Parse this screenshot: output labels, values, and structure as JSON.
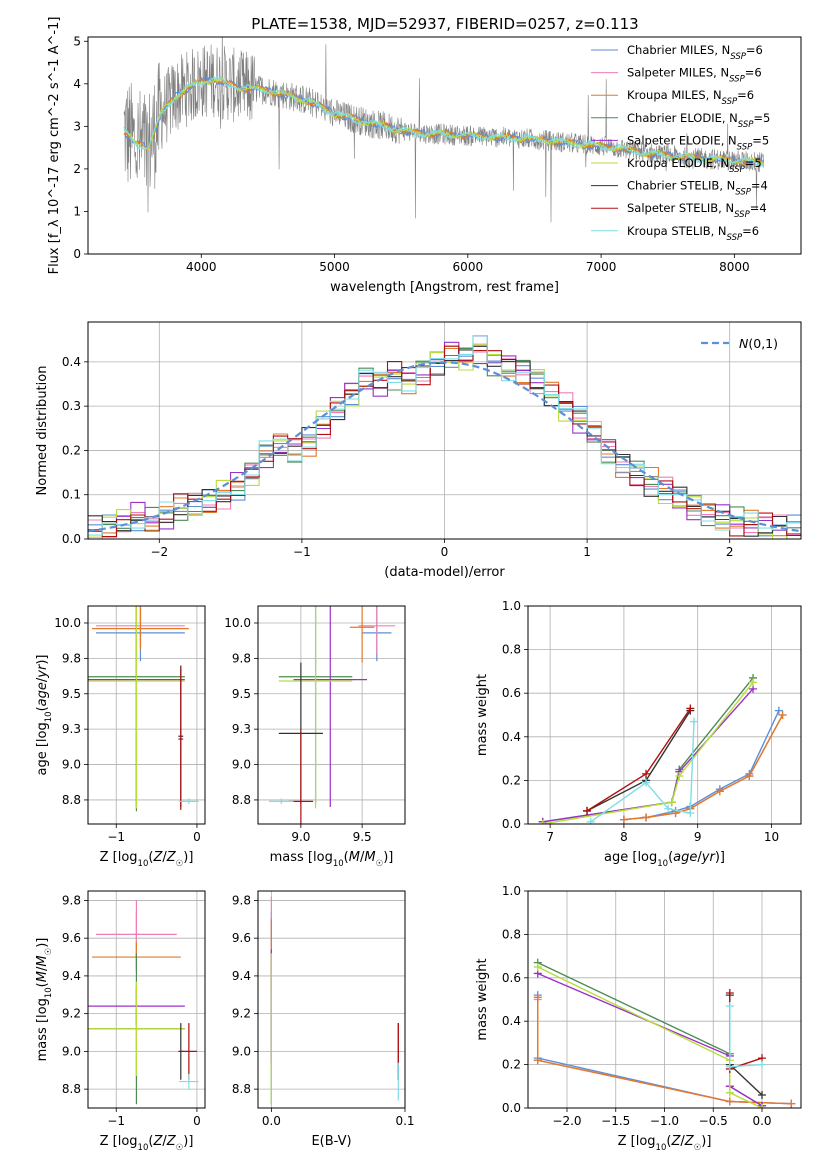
{
  "title": "PLATE=1538, MJD=52937, FIBERID=0257, z=0.113",
  "colors": {
    "Chabrier MILES": "#5b8fd8",
    "Salpeter MILES": "#f07eb5",
    "Kroupa MILES": "#e07b2a",
    "Chabrier ELODIE": "#4d8b55",
    "Salpeter ELODIE": "#9b30c8",
    "Kroupa ELODIE": "#b8dc3c",
    "Chabrier STELIB": "#333333",
    "Salpeter STELIB": "#b01010",
    "Kroupa STELIB": "#7fdde6",
    "data": "#808080",
    "normal": "#5b8fd8",
    "grid": "#b0b0b0"
  },
  "chart_data": [
    {
      "id": "spectrum",
      "type": "line",
      "xlabel": "wavelength [Angstrom, rest frame]",
      "ylabel": "Flux [f_λ 10^-17 erg cm^-2 s^-1 A^-1]",
      "xlim": [
        3150,
        8500
      ],
      "ylim": [
        0,
        5.1
      ],
      "xticks": [
        4000,
        5000,
        6000,
        7000,
        8000
      ],
      "yticks": [
        0,
        1,
        2,
        3,
        4,
        5
      ],
      "grid": false,
      "legend_position": "right",
      "legend": [
        {
          "name": "Chabrier MILES",
          "nssp": "6"
        },
        {
          "name": "Salpeter MILES",
          "nssp": "6"
        },
        {
          "name": "Kroupa MILES",
          "nssp": "6"
        },
        {
          "name": "Chabrier ELODIE",
          "nssp": "5"
        },
        {
          "name": "Salpeter ELODIE",
          "nssp": "5"
        },
        {
          "name": "Kroupa ELODIE",
          "nssp": "5"
        },
        {
          "name": "Chabrier STELIB",
          "nssp": "4"
        },
        {
          "name": "Salpeter STELIB",
          "nssp": "4"
        },
        {
          "name": "Kroupa STELIB",
          "nssp": "6"
        }
      ],
      "data_range": [
        3420,
        8220
      ],
      "continuum": {
        "x": [
          3420,
          3500,
          3600,
          3700,
          3800,
          3900,
          4000,
          4100,
          4300,
          4500,
          4800,
          5000,
          5300,
          5600,
          5900,
          6200,
          6500,
          6800,
          7100,
          7400,
          7700,
          8000,
          8220
        ],
        "y": [
          2.9,
          2.6,
          2.5,
          3.3,
          3.7,
          3.9,
          4.05,
          4.1,
          3.9,
          3.85,
          3.6,
          3.3,
          3.05,
          2.85,
          2.8,
          2.75,
          2.7,
          2.6,
          2.5,
          2.35,
          2.25,
          2.2,
          2.15
        ]
      }
    },
    {
      "id": "residuals",
      "type": "line",
      "xlabel": "(data-model)/error",
      "ylabel": "Normed distribution",
      "xlim": [
        -2.5,
        2.5
      ],
      "ylim": [
        0,
        0.49
      ],
      "xticks": [
        -2,
        -1,
        0,
        1,
        2
      ],
      "yticks": [
        0.0,
        0.1,
        0.2,
        0.3,
        0.4
      ],
      "grid": true,
      "legend_label": "N(0,1)",
      "legend_position": "top-right",
      "bin_width": 0.1,
      "histogram_base": [
        0.02,
        0.025,
        0.04,
        0.05,
        0.04,
        0.05,
        0.07,
        0.075,
        0.085,
        0.1,
        0.12,
        0.15,
        0.19,
        0.21,
        0.2,
        0.22,
        0.26,
        0.3,
        0.33,
        0.36,
        0.35,
        0.37,
        0.36,
        0.38,
        0.4,
        0.42,
        0.41,
        0.43,
        0.4,
        0.39,
        0.38,
        0.36,
        0.33,
        0.3,
        0.27,
        0.24,
        0.2,
        0.17,
        0.15,
        0.13,
        0.11,
        0.09,
        0.07,
        0.06,
        0.05,
        0.04,
        0.035,
        0.03,
        0.025,
        0.02
      ]
    },
    {
      "id": "age-vs-Z",
      "type": "scatter",
      "xlabel": "Z [log10(Z/Z☉)]",
      "ylabel": "age  [log10(age/yr)]",
      "xlim": [
        -1.35,
        0.1
      ],
      "ylim": [
        8.58,
        10.12
      ],
      "xticks": [
        -1,
        0
      ],
      "yticks": [
        8.75,
        9.0,
        9.25,
        9.5,
        9.75,
        10.0
      ],
      "grid": true,
      "points": [
        {
          "model": "Chabrier MILES",
          "x": -0.7,
          "y": 9.93,
          "xerr": 0.55,
          "yerr": 0.2
        },
        {
          "model": "Salpeter MILES",
          "x": -0.7,
          "y": 9.98,
          "xerr": 0.55,
          "yerr": 0.15
        },
        {
          "model": "Kroupa MILES",
          "x": -0.7,
          "y": 9.96,
          "xerr": 0.6,
          "yerr": 0.15
        },
        {
          "model": "Chabrier ELODIE",
          "x": -0.75,
          "y": 9.62,
          "xerr": 0.6,
          "yerr": 0.95
        },
        {
          "model": "Salpeter ELODIE",
          "x": -0.75,
          "y": 9.6,
          "xerr": 0.6,
          "yerr": 0.9
        },
        {
          "model": "Kroupa ELODIE",
          "x": -0.75,
          "y": 9.59,
          "xerr": 0.6,
          "yerr": 0.9
        },
        {
          "model": "Chabrier STELIB",
          "x": -0.2,
          "y": 9.2,
          "xerr": 0.03,
          "yerr": 0.5
        },
        {
          "model": "Salpeter STELIB",
          "x": -0.2,
          "y": 9.18,
          "xerr": 0.03,
          "yerr": 0.5
        },
        {
          "model": "Kroupa STELIB",
          "x": -0.1,
          "y": 8.74,
          "xerr": 0.12,
          "yerr": 0.02
        }
      ]
    },
    {
      "id": "age-vs-mass",
      "type": "scatter",
      "xlabel": "mass [log10(M/M☉)]",
      "ylabel": "",
      "xlim": [
        8.65,
        9.85
      ],
      "ylim": [
        8.58,
        10.12
      ],
      "xticks": [
        9.0,
        9.5
      ],
      "yticks": [
        8.75,
        9.0,
        9.25,
        9.5,
        9.75,
        10.0
      ],
      "grid": true,
      "points": [
        {
          "model": "Chabrier MILES",
          "x": 9.62,
          "y": 9.93,
          "xerr": 0.12,
          "yerr": 0.2
        },
        {
          "model": "Salpeter MILES",
          "x": 9.62,
          "y": 9.98,
          "xerr": 0.15,
          "yerr": 0.2
        },
        {
          "model": "Kroupa MILES",
          "x": 9.5,
          "y": 9.97,
          "xerr": 0.1,
          "yerr": 0.25
        },
        {
          "model": "Chabrier ELODIE",
          "x": 9.12,
          "y": 9.62,
          "xerr": 0.3,
          "yerr": 0.9
        },
        {
          "model": "Salpeter ELODIE",
          "x": 9.24,
          "y": 9.6,
          "xerr": 0.3,
          "yerr": 0.9
        },
        {
          "model": "Kroupa ELODIE",
          "x": 9.12,
          "y": 9.59,
          "xerr": 0.3,
          "yerr": 0.9
        },
        {
          "model": "Chabrier STELIB",
          "x": 9.0,
          "y": 9.22,
          "xerr": 0.18,
          "yerr": 0.5
        },
        {
          "model": "Salpeter STELIB",
          "x": 9.0,
          "y": 8.74,
          "xerr": 0.1,
          "yerr": 0.5
        },
        {
          "model": "Kroupa STELIB",
          "x": 8.84,
          "y": 8.74,
          "xerr": 0.1,
          "yerr": 0.02
        }
      ]
    },
    {
      "id": "weight-vs-age",
      "type": "line",
      "xlabel": "age  [log10(age/yr)]",
      "ylabel": "mass weight",
      "xlim": [
        6.7,
        10.4
      ],
      "ylim": [
        0,
        1.0
      ],
      "xticks": [
        7,
        8,
        9,
        10
      ],
      "yticks": [
        0.0,
        0.2,
        0.4,
        0.6,
        0.8,
        1.0
      ],
      "grid": true,
      "series": [
        {
          "model": "Chabrier MILES",
          "x": [
            8.0,
            8.3,
            8.7,
            8.9,
            9.3,
            9.7,
            10.1
          ],
          "y": [
            0.02,
            0.03,
            0.06,
            0.08,
            0.16,
            0.23,
            0.52
          ]
        },
        {
          "model": "Salpeter MILES",
          "x": [
            8.0,
            8.3,
            8.7,
            8.9,
            9.3,
            9.7,
            10.15
          ],
          "y": [
            0.02,
            0.03,
            0.05,
            0.07,
            0.15,
            0.22,
            0.5
          ]
        },
        {
          "model": "Kroupa MILES",
          "x": [
            8.0,
            8.3,
            8.7,
            8.9,
            9.3,
            9.7,
            10.15
          ],
          "y": [
            0.02,
            0.03,
            0.05,
            0.07,
            0.15,
            0.22,
            0.5
          ]
        },
        {
          "model": "Chabrier ELODIE",
          "x": [
            6.9,
            8.65,
            8.75,
            9.75
          ],
          "y": [
            0.01,
            0.1,
            0.25,
            0.67
          ]
        },
        {
          "model": "Salpeter ELODIE",
          "x": [
            6.9,
            8.65,
            8.75,
            9.75
          ],
          "y": [
            0.01,
            0.1,
            0.24,
            0.62
          ]
        },
        {
          "model": "Kroupa ELODIE",
          "x": [
            6.9,
            8.65,
            8.75,
            9.75
          ],
          "y": [
            0.0,
            0.1,
            0.22,
            0.65
          ]
        },
        {
          "model": "Chabrier STELIB",
          "x": [
            7.5,
            8.3,
            8.9
          ],
          "y": [
            0.06,
            0.2,
            0.52
          ]
        },
        {
          "model": "Salpeter STELIB",
          "x": [
            7.5,
            8.3,
            8.9
          ],
          "y": [
            0.06,
            0.23,
            0.53
          ]
        },
        {
          "model": "Kroupa STELIB",
          "x": [
            7.55,
            8.3,
            8.6,
            8.9,
            8.95
          ],
          "y": [
            0.01,
            0.19,
            0.07,
            0.05,
            0.47
          ]
        }
      ]
    },
    {
      "id": "mass-vs-Z",
      "type": "scatter",
      "xlabel": "Z [log10(Z/Z☉)]",
      "ylabel": "mass [log10(M/M☉)]",
      "xlim": [
        -1.35,
        0.1
      ],
      "ylim": [
        8.7,
        9.85
      ],
      "xticks": [
        -1,
        0
      ],
      "yticks": [
        8.8,
        9.0,
        9.2,
        9.4,
        9.6,
        9.8
      ],
      "grid": true,
      "points": [
        {
          "model": "Chabrier MILES",
          "x": -0.75,
          "y": 9.62,
          "xerr": 0.03,
          "yerr": 0.12
        },
        {
          "model": "Salpeter MILES",
          "x": -0.75,
          "y": 9.62,
          "xerr": 0.5,
          "yerr": 0.18
        },
        {
          "model": "Kroupa MILES",
          "x": -0.75,
          "y": 9.5,
          "xerr": 0.55,
          "yerr": 0.08
        },
        {
          "model": "Chabrier ELODIE",
          "x": -0.75,
          "y": 9.12,
          "xerr": 0.6,
          "yerr": 0.4
        },
        {
          "model": "Salpeter ELODIE",
          "x": -0.75,
          "y": 9.24,
          "xerr": 0.6,
          "yerr": 0.1
        },
        {
          "model": "Kroupa ELODIE",
          "x": -0.75,
          "y": 9.12,
          "xerr": 0.6,
          "yerr": 0.25
        },
        {
          "model": "Chabrier STELIB",
          "x": -0.2,
          "y": 9.0,
          "xerr": 0.03,
          "yerr": 0.15
        },
        {
          "model": "Salpeter STELIB",
          "x": -0.1,
          "y": 9.0,
          "xerr": 0.1,
          "yerr": 0.15
        },
        {
          "model": "Kroupa STELIB",
          "x": -0.1,
          "y": 8.84,
          "xerr": 0.12,
          "yerr": 0.04
        }
      ]
    },
    {
      "id": "mass-vs-ebv",
      "type": "scatter",
      "xlabel": "E(B-V)",
      "ylabel": "",
      "xlim": [
        -0.01,
        0.1
      ],
      "ylim": [
        8.7,
        9.85
      ],
      "xticks": [
        0.0,
        0.1
      ],
      "yticks": [
        8.8,
        9.0,
        9.2,
        9.4,
        9.6,
        9.8
      ],
      "grid": true,
      "points": [
        {
          "model": "Chabrier MILES",
          "x": 0.0,
          "y": 9.62,
          "xerr": 0.0,
          "yerr": 0.12
        },
        {
          "model": "Salpeter MILES",
          "x": 0.0,
          "y": 9.62,
          "xerr": 0.0,
          "yerr": 0.2
        },
        {
          "model": "Kroupa MILES",
          "x": 0.0,
          "y": 9.5,
          "xerr": 0.0,
          "yerr": 0.2
        },
        {
          "model": "Chabrier ELODIE",
          "x": 0.0,
          "y": 9.12,
          "xerr": 0.0,
          "yerr": 0.4
        },
        {
          "model": "Salpeter ELODIE",
          "x": 0.0,
          "y": 9.24,
          "xerr": 0.0,
          "yerr": 0.3
        },
        {
          "model": "Kroupa ELODIE",
          "x": 0.0,
          "y": 9.12,
          "xerr": 0.0,
          "yerr": 0.4
        },
        {
          "model": "Chabrier STELIB",
          "x": 0.095,
          "y": 9.0,
          "xerr": 0.0,
          "yerr": 0.15
        },
        {
          "model": "Salpeter STELIB",
          "x": 0.095,
          "y": 9.0,
          "xerr": 0.0,
          "yerr": 0.15
        },
        {
          "model": "Kroupa STELIB",
          "x": 0.095,
          "y": 8.84,
          "xerr": 0.0,
          "yerr": 0.1
        }
      ]
    },
    {
      "id": "weight-vs-Z",
      "type": "line",
      "xlabel": "Z [log10(Z/Z☉)]",
      "ylabel": "mass weight",
      "xlim": [
        -2.4,
        0.4
      ],
      "ylim": [
        0,
        1.0
      ],
      "xticks": [
        -2.0,
        -1.5,
        -1.0,
        -0.5,
        0.0
      ],
      "yticks": [
        0.0,
        0.2,
        0.4,
        0.6,
        0.8,
        1.0
      ],
      "grid": true,
      "series": [
        {
          "model": "Chabrier MILES",
          "x": [
            -2.3,
            -2.3,
            -0.33,
            0.3
          ],
          "y": [
            0.52,
            0.23,
            0.03,
            0.02
          ]
        },
        {
          "model": "Salpeter MILES",
          "x": [
            -2.3,
            -2.3,
            -0.33,
            0.3
          ],
          "y": [
            0.5,
            0.22,
            0.03,
            0.02
          ]
        },
        {
          "model": "Kroupa MILES",
          "x": [
            -2.3,
            -2.3,
            -0.33,
            0.3
          ],
          "y": [
            0.51,
            0.22,
            0.03,
            0.02
          ]
        },
        {
          "model": "Chabrier ELODIE",
          "x": [
            -2.3,
            -0.33,
            -0.33,
            0.0
          ],
          "y": [
            0.67,
            0.25,
            0.1,
            0.01
          ]
        },
        {
          "model": "Salpeter ELODIE",
          "x": [
            -2.3,
            -0.33,
            -0.33,
            0.0
          ],
          "y": [
            0.62,
            0.24,
            0.1,
            0.01
          ]
        },
        {
          "model": "Kroupa ELODIE",
          "x": [
            -2.3,
            -0.33,
            -0.33,
            0.0
          ],
          "y": [
            0.65,
            0.22,
            0.07,
            0.0
          ]
        },
        {
          "model": "Chabrier STELIB",
          "x": [
            -0.33,
            -0.33,
            0.0
          ],
          "y": [
            0.52,
            0.2,
            0.06
          ]
        },
        {
          "model": "Salpeter STELIB",
          "x": [
            -0.33,
            -0.33,
            0.0
          ],
          "y": [
            0.53,
            0.18,
            0.23
          ]
        },
        {
          "model": "Kroupa STELIB",
          "x": [
            -0.33,
            -0.33,
            0.0
          ],
          "y": [
            0.47,
            0.19,
            0.2
          ]
        }
      ]
    }
  ]
}
